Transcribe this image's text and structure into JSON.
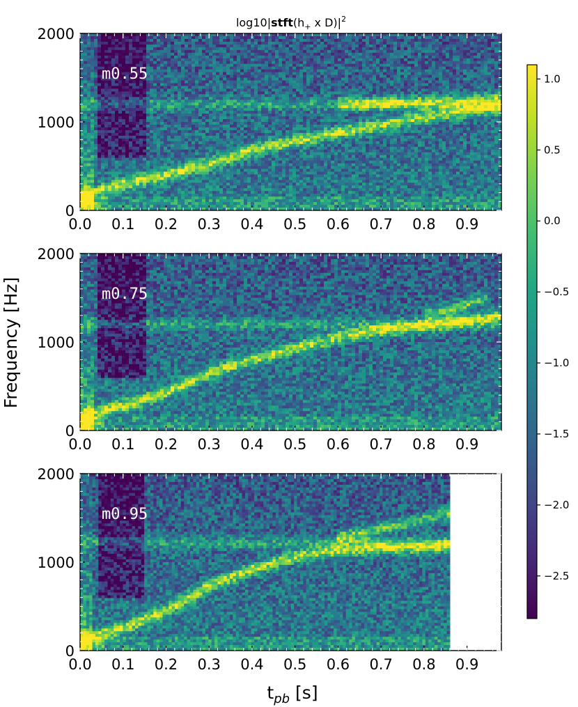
{
  "figure": {
    "title": "log10|stft(h₊ x D)|²",
    "title_parts": {
      "prefix": "log10|",
      "bold": "stft",
      "middle": "(h",
      "subscript": "+",
      "suffix": " x D)|",
      "superscript": "2"
    },
    "ylabel": "Frequency [Hz]",
    "xlabel_main": "t",
    "xlabel_sub": "pb",
    "xlabel_unit": " [s]"
  },
  "chart_data": {
    "type": "heatmap",
    "title": "log10|stft(h₊ x D)|²",
    "xlabel": "t_pb [s]",
    "ylabel": "Frequency [Hz]",
    "xlim": [
      0.0,
      0.98
    ],
    "ylim": [
      0,
      2000
    ],
    "x_ticks": [
      "0.0",
      "0.1",
      "0.2",
      "0.3",
      "0.4",
      "0.5",
      "0.6",
      "0.7",
      "0.8",
      "0.9"
    ],
    "y_ticks": [
      "0",
      "1000",
      "2000"
    ],
    "colorbar": {
      "colormap": "viridis",
      "range": [
        -2.8,
        1.1
      ],
      "ticks": [
        "1.0",
        "0.5",
        "0.0",
        "−0.5",
        "−1.0",
        "−1.5",
        "−2.0",
        "−2.5"
      ],
      "tick_values": [
        1.0,
        0.5,
        0.0,
        -0.5,
        -1.0,
        -1.5,
        -2.0,
        -2.5
      ]
    },
    "panels": [
      {
        "label": "m0.55",
        "t_end": 0.98,
        "tracks": [
          {
            "name": "dominant",
            "t": [
              0.0,
              0.1,
              0.2,
              0.3,
              0.4,
              0.5,
              0.6,
              0.7,
              0.8,
              0.9,
              0.98
            ],
            "f": [
              150,
              300,
              400,
              520,
              680,
              780,
              880,
              960,
              1050,
              1120,
              1160
            ]
          },
          {
            "name": "upper",
            "t": [
              0.6,
              0.7,
              0.8,
              0.9,
              0.98
            ],
            "f": [
              1200,
              1210,
              1220,
              1240,
              1270
            ]
          },
          {
            "name": "constant",
            "t": [
              0.0,
              0.98
            ],
            "f": [
              1200,
              1200
            ]
          }
        ]
      },
      {
        "label": "m0.75",
        "t_end": 0.98,
        "tracks": [
          {
            "name": "dominant",
            "t": [
              0.0,
              0.1,
              0.2,
              0.3,
              0.4,
              0.5,
              0.6,
              0.7,
              0.8,
              0.9,
              0.98
            ],
            "f": [
              150,
              280,
              430,
              650,
              800,
              930,
              1050,
              1130,
              1180,
              1250,
              1300
            ]
          },
          {
            "name": "upper",
            "t": [
              0.8,
              0.9,
              0.95
            ],
            "f": [
              1300,
              1420,
              1520
            ]
          },
          {
            "name": "constant",
            "t": [
              0.0,
              0.98
            ],
            "f": [
              1200,
              1200
            ]
          }
        ]
      },
      {
        "label": "m0.95",
        "t_end": 0.86,
        "tracks": [
          {
            "name": "dominant",
            "t": [
              0.0,
              0.1,
              0.2,
              0.3,
              0.4,
              0.5,
              0.6,
              0.7,
              0.8,
              0.86
            ],
            "f": [
              120,
              250,
              450,
              730,
              920,
              1060,
              1130,
              1160,
              1170,
              1180
            ]
          },
          {
            "name": "upper",
            "t": [
              0.6,
              0.7,
              0.8,
              0.86
            ],
            "f": [
              1280,
              1380,
              1480,
              1560
            ]
          },
          {
            "name": "constant",
            "t": [
              0.0,
              0.86
            ],
            "f": [
              1220,
              1220
            ]
          }
        ]
      }
    ]
  }
}
